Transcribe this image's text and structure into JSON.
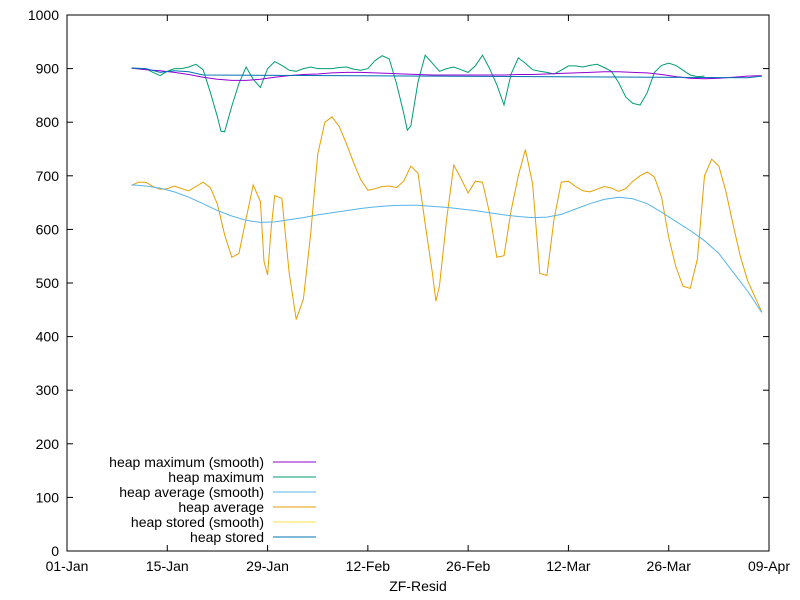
{
  "chart_data": {
    "type": "line",
    "title": "",
    "xlabel": "ZF-Resid",
    "ylabel": "",
    "x_ticks": [
      "01-Jan",
      "15-Jan",
      "29-Jan",
      "12-Feb",
      "26-Feb",
      "12-Mar",
      "26-Mar",
      "09-Apr"
    ],
    "y_ticks": [
      "0",
      "100",
      "200",
      "300",
      "400",
      "500",
      "600",
      "700",
      "800",
      "900",
      "1000"
    ],
    "xlim_days": [
      0,
      98
    ],
    "ylim": [
      0,
      1000
    ],
    "grid": false,
    "legend_position": "bottom-left",
    "series": [
      {
        "name": "heap maximum (smooth)",
        "color": "#9400d3",
        "points": [
          [
            9,
            901
          ],
          [
            11,
            898
          ],
          [
            13,
            896
          ],
          [
            15,
            893
          ],
          [
            17,
            889
          ],
          [
            19,
            884
          ],
          [
            21,
            880
          ],
          [
            23,
            878
          ],
          [
            25,
            878
          ],
          [
            27,
            880
          ],
          [
            29,
            884
          ],
          [
            31,
            887
          ],
          [
            33,
            889
          ],
          [
            35,
            890
          ],
          [
            37,
            892
          ],
          [
            39,
            893
          ],
          [
            41,
            893
          ],
          [
            43,
            892
          ],
          [
            45,
            891
          ],
          [
            47,
            890
          ],
          [
            49,
            889
          ],
          [
            51,
            888
          ],
          [
            53,
            888
          ],
          [
            55,
            888
          ],
          [
            57,
            888
          ],
          [
            59,
            888
          ],
          [
            61,
            888
          ],
          [
            63,
            889
          ],
          [
            65,
            889
          ],
          [
            67,
            890
          ],
          [
            69,
            891
          ],
          [
            71,
            892
          ],
          [
            73,
            893
          ],
          [
            75,
            894
          ],
          [
            77,
            894
          ],
          [
            79,
            893
          ],
          [
            81,
            892
          ],
          [
            83,
            889
          ],
          [
            85,
            885
          ],
          [
            87,
            882
          ],
          [
            89,
            881
          ],
          [
            91,
            882
          ],
          [
            93,
            884
          ],
          [
            95,
            886
          ],
          [
            97,
            887
          ]
        ]
      },
      {
        "name": "heap maximum",
        "color": "#009e73",
        "points": [
          [
            9,
            901
          ],
          [
            11,
            900
          ],
          [
            12,
            893
          ],
          [
            13,
            887
          ],
          [
            14,
            895
          ],
          [
            15,
            900
          ],
          [
            16,
            900
          ],
          [
            17,
            903
          ],
          [
            18,
            908
          ],
          [
            19,
            898
          ],
          [
            20,
            856
          ],
          [
            21,
            810
          ],
          [
            21.5,
            783
          ],
          [
            22,
            782
          ],
          [
            23,
            830
          ],
          [
            24,
            872
          ],
          [
            25,
            903
          ],
          [
            26,
            880
          ],
          [
            27,
            865
          ],
          [
            28,
            900
          ],
          [
            29,
            913
          ],
          [
            30,
            906
          ],
          [
            31,
            897
          ],
          [
            32,
            895
          ],
          [
            33,
            900
          ],
          [
            34,
            903
          ],
          [
            35,
            900
          ],
          [
            36,
            900
          ],
          [
            37,
            900
          ],
          [
            38,
            902
          ],
          [
            39,
            903
          ],
          [
            40,
            899
          ],
          [
            41,
            897
          ],
          [
            42,
            900
          ],
          [
            43,
            915
          ],
          [
            44,
            924
          ],
          [
            45,
            918
          ],
          [
            46,
            872
          ],
          [
            47,
            817
          ],
          [
            47.5,
            785
          ],
          [
            48,
            793
          ],
          [
            49,
            875
          ],
          [
            50,
            925
          ],
          [
            51,
            910
          ],
          [
            52,
            895
          ],
          [
            53,
            900
          ],
          [
            54,
            903
          ],
          [
            55,
            898
          ],
          [
            56,
            893
          ],
          [
            57,
            905
          ],
          [
            58,
            925
          ],
          [
            59,
            900
          ],
          [
            60,
            870
          ],
          [
            61,
            832
          ],
          [
            62,
            890
          ],
          [
            63,
            920
          ],
          [
            64,
            910
          ],
          [
            65,
            898
          ],
          [
            66,
            895
          ],
          [
            67,
            893
          ],
          [
            68,
            890
          ],
          [
            69,
            897
          ],
          [
            70,
            905
          ],
          [
            71,
            905
          ],
          [
            72,
            903
          ],
          [
            73,
            906
          ],
          [
            74,
            908
          ],
          [
            75,
            902
          ],
          [
            76,
            895
          ],
          [
            77,
            874
          ],
          [
            78,
            847
          ],
          [
            79,
            835
          ],
          [
            80,
            832
          ],
          [
            81,
            855
          ],
          [
            82,
            893
          ],
          [
            83,
            906
          ],
          [
            84,
            910
          ],
          [
            85,
            906
          ],
          [
            86,
            897
          ],
          [
            87,
            888
          ],
          [
            88,
            885
          ],
          [
            89,
            886
          ]
        ]
      },
      {
        "name": "heap average (smooth)",
        "color": "#56b4e9",
        "points": [
          [
            9,
            683
          ],
          [
            11,
            681
          ],
          [
            13,
            677
          ],
          [
            15,
            670
          ],
          [
            17,
            660
          ],
          [
            19,
            648
          ],
          [
            21,
            635
          ],
          [
            23,
            625
          ],
          [
            25,
            617
          ],
          [
            27,
            613
          ],
          [
            29,
            614
          ],
          [
            31,
            618
          ],
          [
            33,
            622
          ],
          [
            35,
            627
          ],
          [
            37,
            631
          ],
          [
            39,
            635
          ],
          [
            41,
            639
          ],
          [
            43,
            642
          ],
          [
            45,
            644
          ],
          [
            47,
            645
          ],
          [
            49,
            645
          ],
          [
            51,
            643
          ],
          [
            53,
            641
          ],
          [
            55,
            638
          ],
          [
            57,
            635
          ],
          [
            59,
            631
          ],
          [
            61,
            627
          ],
          [
            63,
            624
          ],
          [
            65,
            622
          ],
          [
            67,
            623
          ],
          [
            69,
            628
          ],
          [
            71,
            638
          ],
          [
            73,
            648
          ],
          [
            75,
            656
          ],
          [
            77,
            660
          ],
          [
            79,
            657
          ],
          [
            81,
            648
          ],
          [
            83,
            632
          ],
          [
            85,
            615
          ],
          [
            87,
            598
          ],
          [
            89,
            579
          ],
          [
            91,
            555
          ],
          [
            93,
            520
          ],
          [
            95,
            485
          ],
          [
            97,
            445
          ]
        ]
      },
      {
        "name": "heap average",
        "color": "#e69f00",
        "points": [
          [
            9,
            682
          ],
          [
            10,
            688
          ],
          [
            11,
            688
          ],
          [
            12,
            680
          ],
          [
            13,
            675
          ],
          [
            14,
            676
          ],
          [
            15,
            681
          ],
          [
            16,
            676
          ],
          [
            17,
            672
          ],
          [
            18,
            680
          ],
          [
            19,
            688
          ],
          [
            20,
            678
          ],
          [
            21,
            647
          ],
          [
            22,
            590
          ],
          [
            23,
            548
          ],
          [
            24,
            555
          ],
          [
            25,
            620
          ],
          [
            26,
            683
          ],
          [
            27,
            652
          ],
          [
            27.5,
            540
          ],
          [
            28,
            515
          ],
          [
            28.5,
            603
          ],
          [
            29,
            663
          ],
          [
            30,
            658
          ],
          [
            31,
            520
          ],
          [
            32,
            432
          ],
          [
            33,
            470
          ],
          [
            34,
            590
          ],
          [
            35,
            740
          ],
          [
            36,
            800
          ],
          [
            37,
            810
          ],
          [
            38,
            792
          ],
          [
            39,
            760
          ],
          [
            40,
            725
          ],
          [
            41,
            693
          ],
          [
            42,
            673
          ],
          [
            43,
            676
          ],
          [
            44,
            680
          ],
          [
            45,
            681
          ],
          [
            46,
            678
          ],
          [
            47,
            690
          ],
          [
            48,
            718
          ],
          [
            49,
            705
          ],
          [
            50,
            610
          ],
          [
            51,
            520
          ],
          [
            51.5,
            466
          ],
          [
            52,
            495
          ],
          [
            53,
            620
          ],
          [
            54,
            720
          ],
          [
            55,
            695
          ],
          [
            56,
            668
          ],
          [
            57,
            690
          ],
          [
            58,
            688
          ],
          [
            59,
            630
          ],
          [
            60,
            548
          ],
          [
            61,
            551
          ],
          [
            62,
            635
          ],
          [
            63,
            700
          ],
          [
            64,
            749
          ],
          [
            65,
            685
          ],
          [
            66,
            518
          ],
          [
            67,
            514
          ],
          [
            68,
            620
          ],
          [
            69,
            688
          ],
          [
            70,
            690
          ],
          [
            71,
            680
          ],
          [
            72,
            672
          ],
          [
            73,
            670
          ],
          [
            74,
            675
          ],
          [
            75,
            680
          ],
          [
            76,
            677
          ],
          [
            77,
            671
          ],
          [
            78,
            676
          ],
          [
            79,
            690
          ],
          [
            80,
            700
          ],
          [
            81,
            707
          ],
          [
            82,
            698
          ],
          [
            83,
            660
          ],
          [
            84,
            585
          ],
          [
            85,
            530
          ],
          [
            86,
            494
          ],
          [
            87,
            490
          ],
          [
            88,
            545
          ],
          [
            89,
            700
          ],
          [
            90,
            731
          ],
          [
            91,
            718
          ],
          [
            92,
            670
          ],
          [
            93,
            608
          ],
          [
            94,
            550
          ],
          [
            95,
            505
          ],
          [
            96,
            475
          ],
          [
            97,
            446
          ]
        ]
      },
      {
        "name": "heap stored (smooth)",
        "color": "#f0e442",
        "points": []
      },
      {
        "name": "heap stored",
        "color": "#0072b2",
        "points": [
          [
            9,
            901
          ],
          [
            11,
            900
          ],
          [
            13,
            893
          ],
          [
            15,
            896
          ],
          [
            17,
            894
          ],
          [
            19,
            888
          ],
          [
            95,
            883
          ],
          [
            97,
            886
          ]
        ]
      }
    ]
  }
}
